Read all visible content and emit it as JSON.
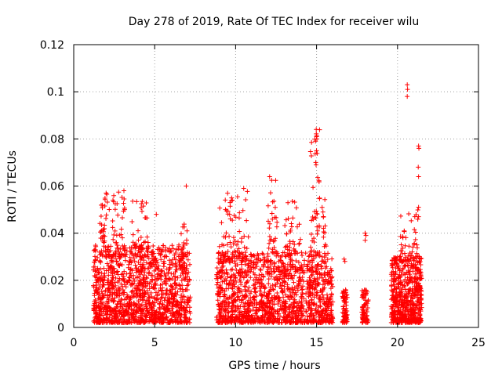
{
  "chart_data": {
    "type": "scatter",
    "title": "Day 278 of 2019, Rate Of TEC Index for receiver wilu",
    "xlabel": "GPS time / hours",
    "ylabel": "ROTI / TECUs",
    "xlim": [
      0,
      25
    ],
    "ylim": [
      0,
      0.12
    ],
    "x_ticks": [
      0,
      5,
      10,
      15,
      20,
      25
    ],
    "x_tick_labels": [
      "0",
      "5",
      "10",
      "15",
      "20",
      "25"
    ],
    "y_ticks": [
      0,
      0.02,
      0.04,
      0.06,
      0.08,
      0.1,
      0.12
    ],
    "y_tick_labels": [
      "0",
      "0.02",
      "0.04",
      "0.06",
      "0.08",
      "0.1",
      "0.12"
    ],
    "grid": true,
    "marker": "+",
    "marker_color": "#ff0000",
    "series": [
      {
        "name": "ROTI",
        "clusters": [
          {
            "x_range": [
              1.2,
              7.2
            ],
            "y_range": [
              0.002,
              0.035
            ],
            "count": 1300
          },
          {
            "x_range": [
              1.6,
              2.2
            ],
            "y_range": [
              0.03,
              0.057
            ],
            "count": 40
          },
          {
            "x_range": [
              2.4,
              3.2
            ],
            "y_range": [
              0.03,
              0.058
            ],
            "count": 40
          },
          {
            "x_range": [
              3.6,
              4.6
            ],
            "y_range": [
              0.03,
              0.054
            ],
            "count": 45
          },
          {
            "x_range": [
              6.5,
              7.0
            ],
            "y_range": [
              0.025,
              0.044
            ],
            "count": 20
          },
          {
            "x_range": [
              8.8,
              16.0
            ],
            "y_range": [
              0.002,
              0.032
            ],
            "count": 1400
          },
          {
            "x_range": [
              9.0,
              10.8
            ],
            "y_range": [
              0.028,
              0.058
            ],
            "count": 70
          },
          {
            "x_range": [
              12.0,
              12.6
            ],
            "y_range": [
              0.03,
              0.064
            ],
            "count": 30
          },
          {
            "x_range": [
              13.0,
              14.0
            ],
            "y_range": [
              0.03,
              0.055
            ],
            "count": 40
          },
          {
            "x_range": [
              14.6,
              15.2
            ],
            "y_range": [
              0.03,
              0.084
            ],
            "count": 45
          },
          {
            "x_range": [
              15.3,
              15.6
            ],
            "y_range": [
              0.03,
              0.056
            ],
            "count": 15
          },
          {
            "x_range": [
              16.6,
              16.9
            ],
            "y_range": [
              0.002,
              0.016
            ],
            "count": 70
          },
          {
            "x_range": [
              17.8,
              18.2
            ],
            "y_range": [
              0.002,
              0.016
            ],
            "count": 80
          },
          {
            "x_range": [
              19.6,
              21.5
            ],
            "y_range": [
              0.002,
              0.03
            ],
            "count": 600
          },
          {
            "x_range": [
              20.1,
              21.0
            ],
            "y_range": [
              0.028,
              0.05
            ],
            "count": 35
          },
          {
            "x_range": [
              21.0,
              21.4
            ],
            "y_range": [
              0.03,
              0.052
            ],
            "count": 15
          }
        ],
        "points": [
          {
            "x": 6.95,
            "y": 0.06
          },
          {
            "x": 16.7,
            "y": 0.029
          },
          {
            "x": 16.75,
            "y": 0.028
          },
          {
            "x": 18.0,
            "y": 0.04
          },
          {
            "x": 18.0,
            "y": 0.037
          },
          {
            "x": 18.05,
            "y": 0.039
          },
          {
            "x": 20.6,
            "y": 0.103
          },
          {
            "x": 20.62,
            "y": 0.101
          },
          {
            "x": 20.6,
            "y": 0.098
          },
          {
            "x": 21.3,
            "y": 0.077
          },
          {
            "x": 21.32,
            "y": 0.076
          },
          {
            "x": 21.28,
            "y": 0.068
          },
          {
            "x": 21.3,
            "y": 0.064
          },
          {
            "x": 21.3,
            "y": 0.051
          },
          {
            "x": 21.3,
            "y": 0.047
          },
          {
            "x": 14.98,
            "y": 0.084
          },
          {
            "x": 15.0,
            "y": 0.081
          },
          {
            "x": 15.02,
            "y": 0.08
          },
          {
            "x": 14.95,
            "y": 0.07
          },
          {
            "x": 14.97,
            "y": 0.069
          },
          {
            "x": 12.1,
            "y": 0.064
          },
          {
            "x": 10.5,
            "y": 0.059
          },
          {
            "x": 2.0,
            "y": 0.057
          },
          {
            "x": 3.1,
            "y": 0.058
          },
          {
            "x": 5.1,
            "y": 0.048
          },
          {
            "x": 9.8,
            "y": 0.054
          }
        ]
      }
    ]
  }
}
